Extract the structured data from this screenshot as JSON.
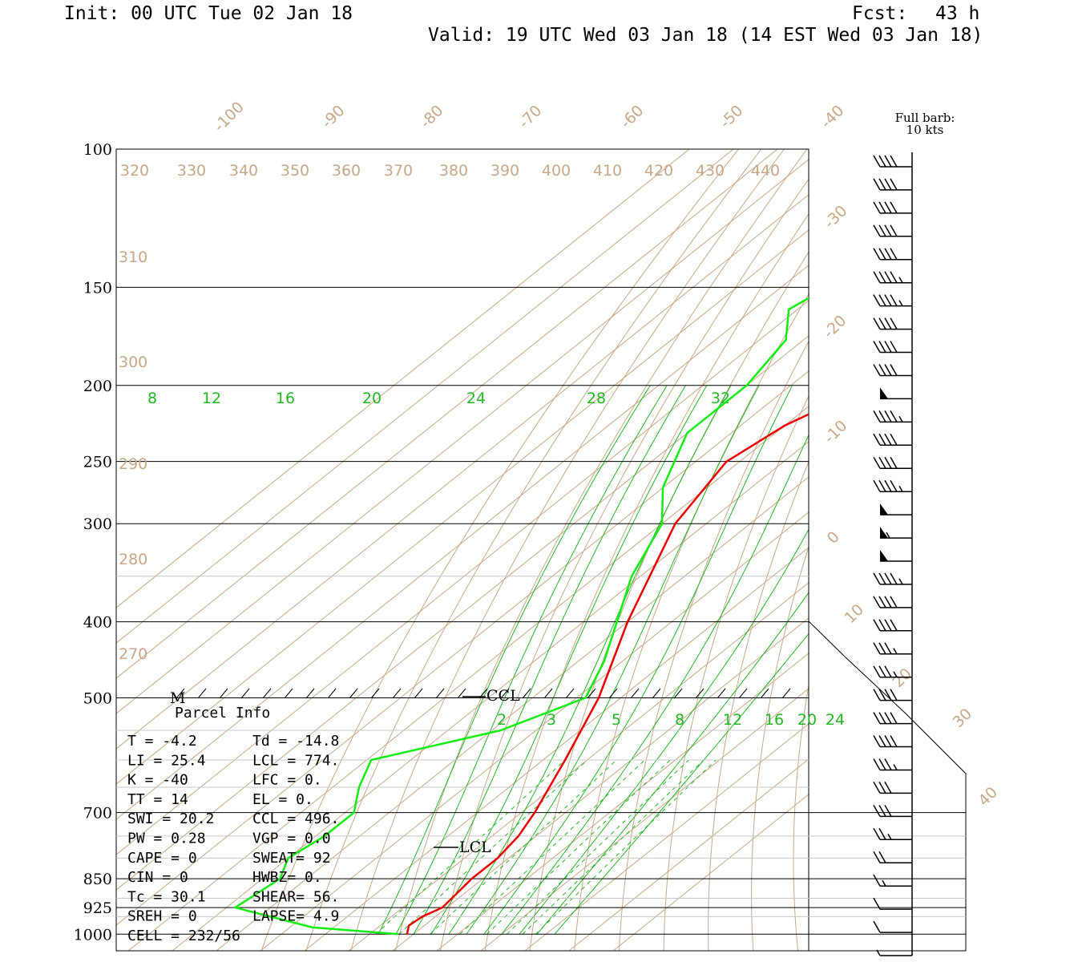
{
  "header": {
    "init": "Init: 00 UTC Tue 02 Jan 18",
    "fcst_label": "Fcst:",
    "fcst_value": "43 h",
    "valid": "Valid: 19 UTC Wed 03 Jan 18 (14 EST Wed 03 Jan 18)"
  },
  "legend": {
    "line1": "Full barb:",
    "line2": "10 kts"
  },
  "parcel": {
    "title": "Parcel Info",
    "rows": [
      [
        "T  =    -4.2",
        "Td = -14.8"
      ],
      [
        "LI =    25.4",
        "LCL =  774."
      ],
      [
        "K  =     -40",
        "LFC =    0."
      ],
      [
        "TT =      14",
        "EL  =    0."
      ],
      [
        "SWI =   20.2",
        "CCL =  496."
      ],
      [
        "PW =    0.28",
        "VGP =   0.0"
      ],
      [
        "CAPE =     0",
        "SWEAT=   92"
      ],
      [
        "CIN =      0",
        "HWBZ=    0."
      ],
      [
        "Tc =    30.1",
        "SHEAR=  56."
      ],
      [
        "SREH =     0",
        "LAPSE=  4.9"
      ],
      [
        "CELL = 232/56",
        ""
      ]
    ]
  },
  "markers": {
    "ccl": "CCL",
    "lcl": "LCL",
    "m": "M"
  },
  "colors": {
    "temperature": "#ee0000",
    "dewpoint": "#11ee11",
    "isotherm": "#c8a888",
    "mixing": "#22b822"
  },
  "chart_data": {
    "type": "line",
    "title": "",
    "y_scale": "log-pressure",
    "pressure_ticks": [
      "100",
      "150",
      "200",
      "250",
      "300",
      "400",
      "500",
      "700",
      "850",
      "925",
      "1000"
    ],
    "isotherm_labels": [
      "-100",
      "-90",
      "-80",
      "-70",
      "-60",
      "-50",
      "-40",
      "-30",
      "-20",
      "-10",
      "0",
      "10",
      "20",
      "30",
      "40"
    ],
    "theta_labels_top": [
      "320",
      "330",
      "340",
      "350",
      "360",
      "370",
      "380",
      "390",
      "400",
      "410",
      "420",
      "430",
      "440"
    ],
    "theta_labels_side": [
      "310",
      "300",
      "290",
      "280",
      "270"
    ],
    "wetbulb_labels": [
      "8",
      "12",
      "16",
      "20",
      "24",
      "28",
      "32"
    ],
    "mixing_labels": [
      "2",
      "3",
      "5",
      "8",
      "12",
      "16",
      "20",
      "24"
    ],
    "series": [
      {
        "name": "Temperature (C)",
        "points": [
          [
            1000,
            -1.5
          ],
          [
            975,
            -3.5
          ],
          [
            950,
            -3
          ],
          [
            925,
            -1
          ],
          [
            850,
            -2.5
          ],
          [
            800,
            -2.5
          ],
          [
            750,
            -4
          ],
          [
            700,
            -7
          ],
          [
            600,
            -15
          ],
          [
            500,
            -25
          ],
          [
            400,
            -40
          ],
          [
            300,
            -57
          ],
          [
            250,
            -63
          ],
          [
            225,
            -60
          ],
          [
            200,
            -52
          ],
          [
            175,
            -45
          ],
          [
            150,
            -47
          ],
          [
            125,
            -50
          ],
          [
            110,
            -55
          ],
          [
            104,
            -56
          ]
        ]
      },
      {
        "name": "Dewpoint (C)",
        "points": [
          [
            1000,
            -3.5
          ],
          [
            980,
            -25
          ],
          [
            925,
            -48
          ],
          [
            850,
            -46
          ],
          [
            800,
            -50
          ],
          [
            750,
            -48
          ],
          [
            700,
            -48
          ],
          [
            650,
            -54
          ],
          [
            600,
            -59
          ],
          [
            550,
            -38
          ],
          [
            500,
            -28
          ],
          [
            450,
            -34
          ],
          [
            350,
            -52
          ],
          [
            300,
            -60
          ],
          [
            270,
            -70
          ],
          [
            230,
            -80
          ],
          [
            200,
            -80
          ],
          [
            175,
            -84
          ],
          [
            160,
            -92
          ],
          [
            145,
            -88
          ],
          [
            120,
            -74
          ],
          [
            104,
            -66
          ]
        ]
      }
    ],
    "wind_barbs_kts": [
      40,
      40,
      40,
      40,
      40,
      45,
      45,
      40,
      40,
      40,
      50,
      45,
      40,
      40,
      45,
      50,
      55,
      50,
      45,
      40,
      40,
      35,
      35,
      40,
      40,
      40,
      35,
      30,
      30,
      25,
      20,
      15,
      10,
      10,
      5
    ],
    "wind_barbs_dir_deg": [
      280,
      280,
      280,
      280,
      280,
      280,
      275,
      275,
      275,
      275,
      275,
      275,
      275,
      275,
      275,
      275,
      275,
      275,
      275,
      275,
      280,
      280,
      280,
      280,
      280,
      285,
      285,
      290,
      290,
      290,
      300,
      300,
      310,
      320,
      330
    ]
  }
}
